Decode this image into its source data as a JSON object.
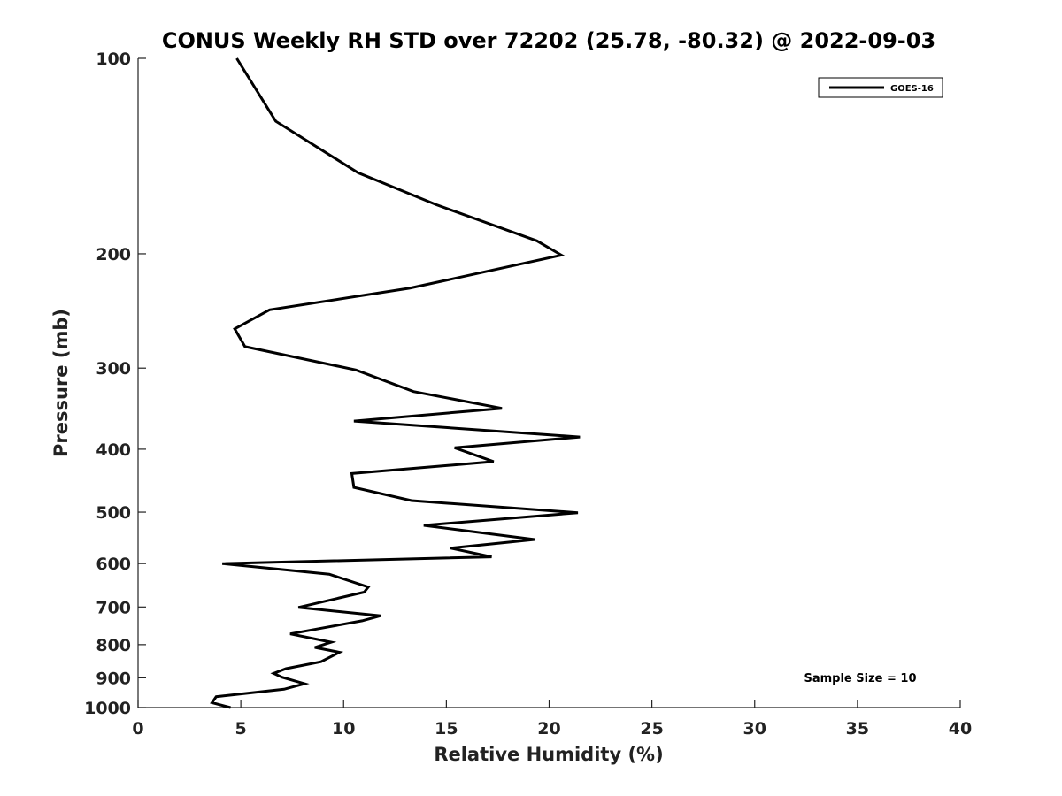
{
  "chart_data": {
    "type": "line",
    "title": "CONUS Weekly RH STD over 72202 (25.78, -80.32) @ 2022-09-03",
    "xlabel": "Relative Humidity (%)",
    "ylabel": "Pressure (mb)",
    "xlim": [
      0,
      40
    ],
    "ylim": [
      1000,
      100
    ],
    "yscale": "log",
    "xticks": [
      0,
      5,
      10,
      15,
      20,
      25,
      30,
      35,
      40
    ],
    "xtick_labels": [
      "0",
      "5",
      "10",
      "15",
      "20",
      "25",
      "30",
      "35",
      "40"
    ],
    "yticks": [
      100,
      200,
      300,
      400,
      500,
      600,
      700,
      800,
      900,
      1000
    ],
    "ytick_labels": [
      "100",
      "200",
      "300",
      "400",
      "500",
      "600",
      "700",
      "800",
      "900",
      "1000"
    ],
    "grid": false,
    "legend_position": "top-right",
    "series": [
      {
        "name": "GOES-16",
        "color": "#000000",
        "points": [
          [
            4.8,
            100
          ],
          [
            6.7,
            125
          ],
          [
            10.7,
            150
          ],
          [
            14.5,
            168
          ],
          [
            19.4,
            191
          ],
          [
            20.6,
            201
          ],
          [
            13.2,
            226
          ],
          [
            6.4,
            244
          ],
          [
            4.7,
            261
          ],
          [
            5.2,
            278
          ],
          [
            10.6,
            302
          ],
          [
            13.4,
            326
          ],
          [
            17.7,
            346
          ],
          [
            10.5,
            362
          ],
          [
            21.5,
            383
          ],
          [
            15.4,
            398
          ],
          [
            17.3,
            418
          ],
          [
            10.4,
            436
          ],
          [
            10.5,
            458
          ],
          [
            13.3,
            480
          ],
          [
            21.4,
            501
          ],
          [
            13.9,
            524
          ],
          [
            19.3,
            551
          ],
          [
            15.2,
            568
          ],
          [
            17.2,
            586
          ],
          [
            4.1,
            600
          ],
          [
            9.3,
            623
          ],
          [
            11.2,
            652
          ],
          [
            11.0,
            664
          ],
          [
            7.8,
            701
          ],
          [
            11.8,
            722
          ],
          [
            10.9,
            735
          ],
          [
            7.4,
            770
          ],
          [
            9.4,
            793
          ],
          [
            8.6,
            808
          ],
          [
            9.8,
            822
          ],
          [
            8.9,
            850
          ],
          [
            7.2,
            871
          ],
          [
            6.6,
            886
          ],
          [
            7.0,
            898
          ],
          [
            8.1,
            919
          ],
          [
            7.1,
            937
          ],
          [
            3.8,
            962
          ],
          [
            3.6,
            983
          ],
          [
            4.5,
            1000
          ]
        ]
      }
    ],
    "annotations": [
      {
        "text": "Sample Size = 10",
        "x": 35,
        "y": 900
      }
    ]
  }
}
